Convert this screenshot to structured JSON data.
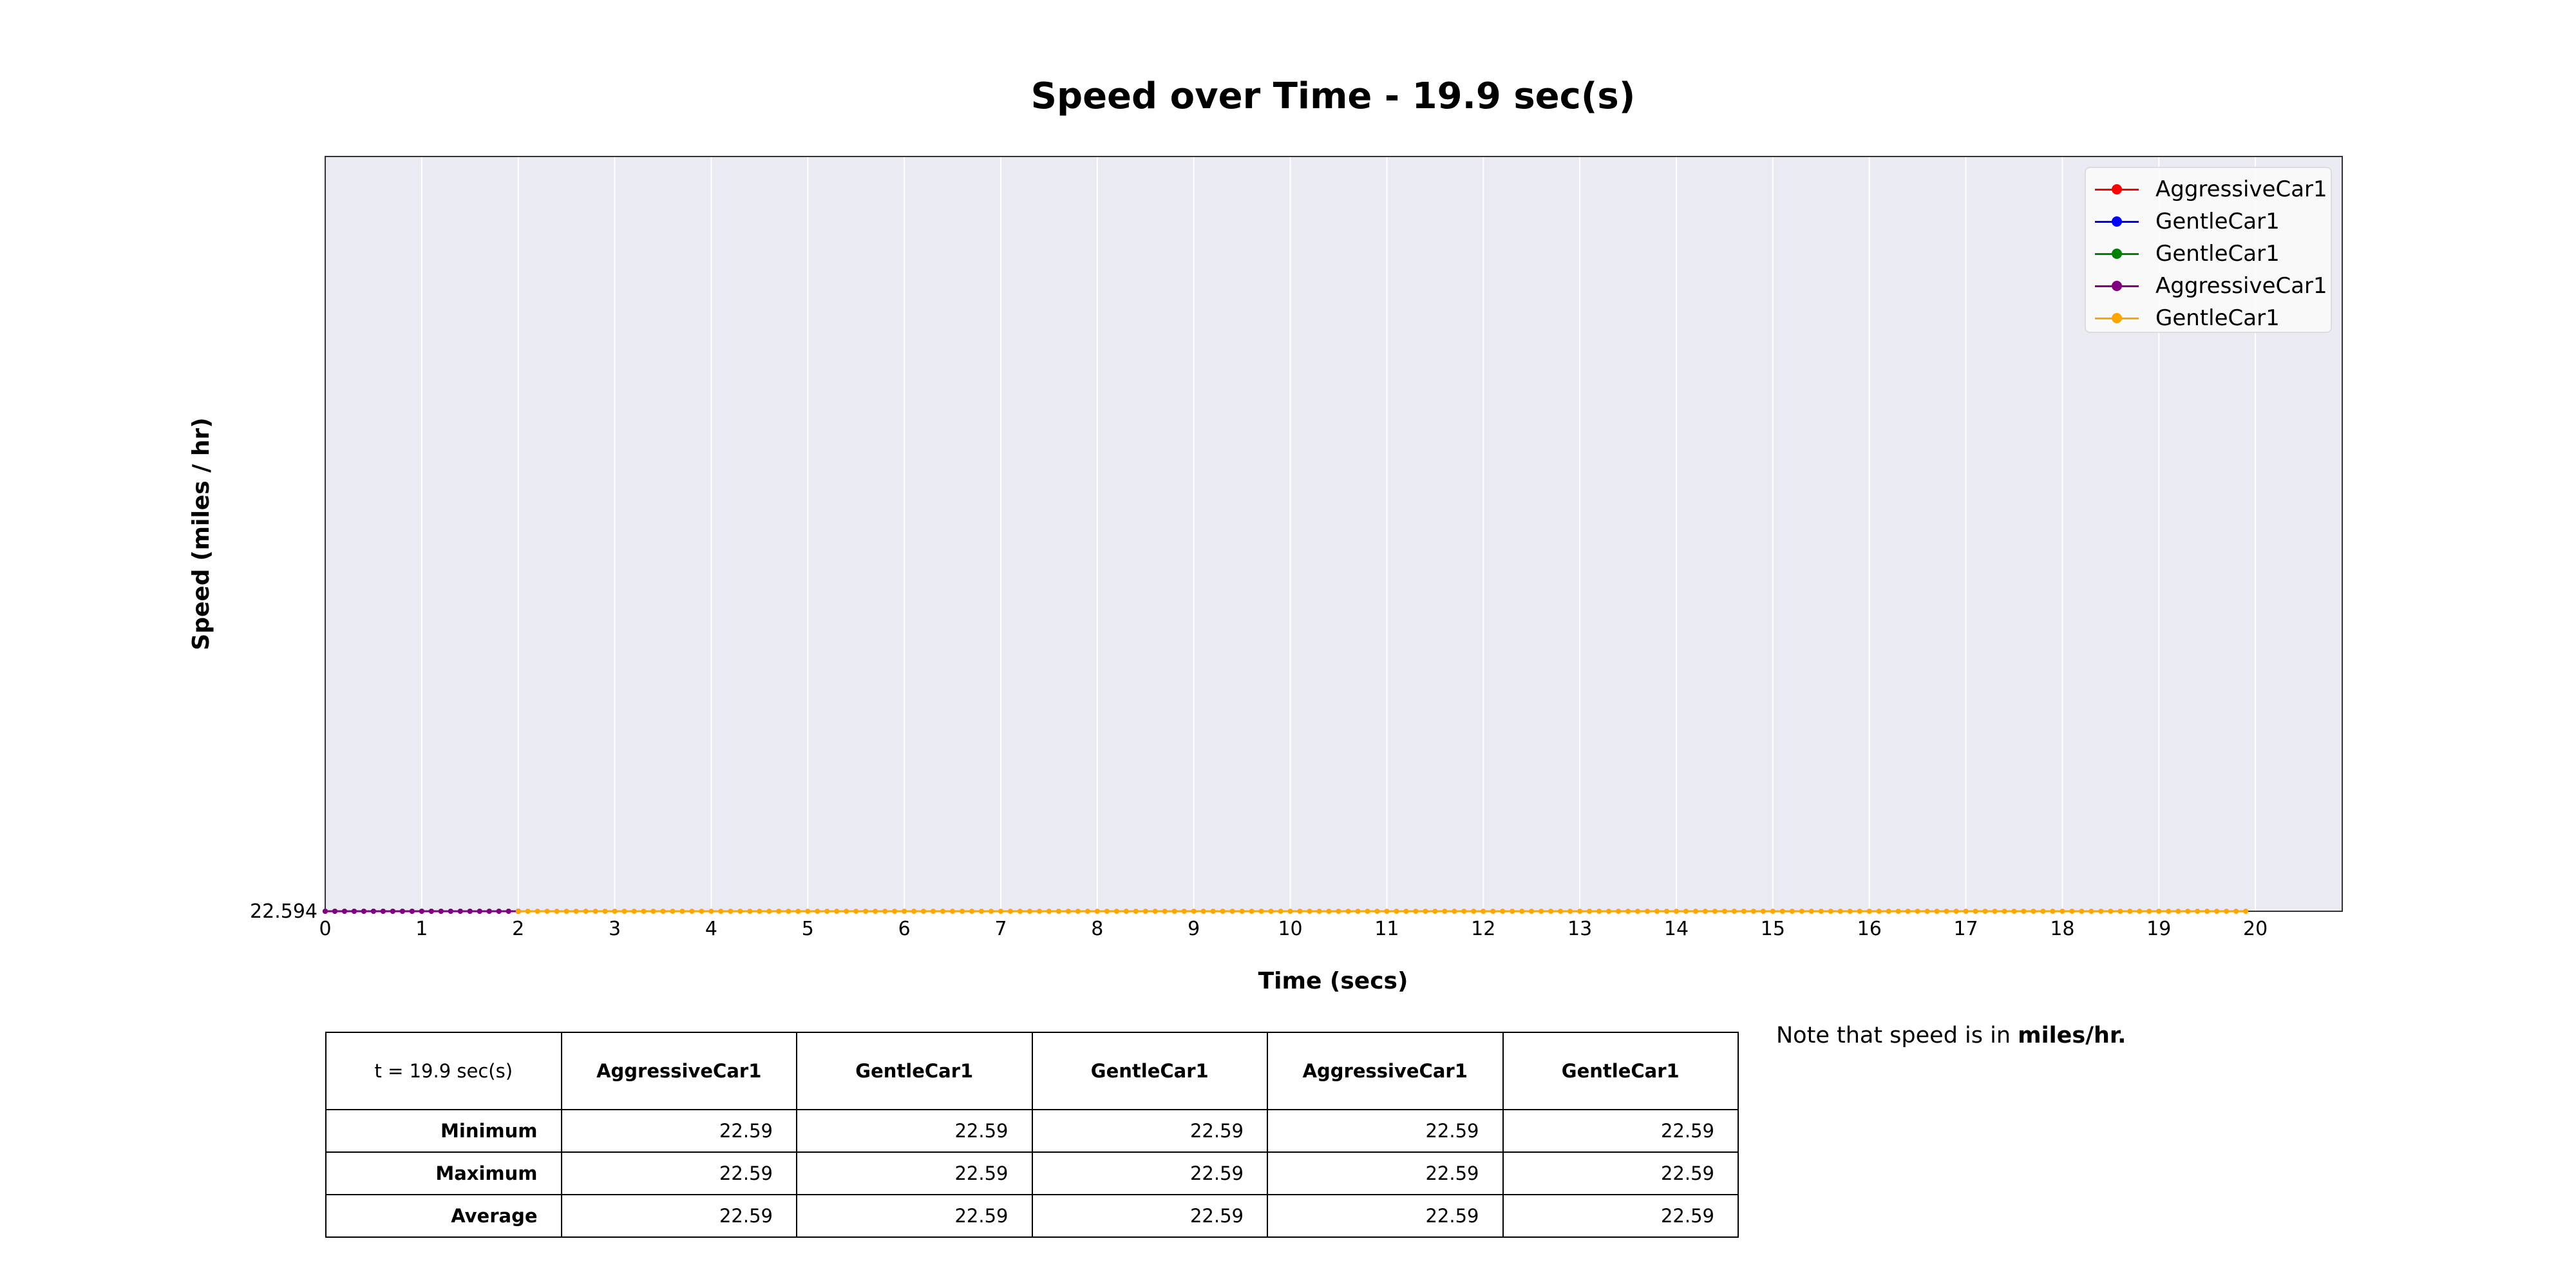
{
  "chart_data": {
    "type": "line",
    "title": "Speed over Time - 19.9 sec(s)",
    "xlabel": "Time (secs)",
    "ylabel": "Speed (miles / hr)",
    "xlim": [
      0,
      20.9
    ],
    "ylim": [
      22.594,
      22.672
    ],
    "x_ticks": [
      0,
      1,
      2,
      3,
      4,
      5,
      6,
      7,
      8,
      9,
      10,
      11,
      12,
      13,
      14,
      15,
      16,
      17,
      18,
      19,
      20
    ],
    "y_ticks": [
      22.594
    ],
    "y_tick_labels": [
      "22.594"
    ],
    "grid": true,
    "legend_position": "top-right",
    "series": [
      {
        "name": "AggressiveCar1",
        "color": "#ff0000",
        "x_start": 0,
        "x_end": 2.0,
        "x_step": 0.1,
        "value": 22.594
      },
      {
        "name": "GentleCar1",
        "color": "#0000ff",
        "x_start": 0,
        "x_end": 2.0,
        "x_step": 0.1,
        "value": 22.594
      },
      {
        "name": "GentleCar1",
        "color": "#008000",
        "x_start": 0,
        "x_end": 2.0,
        "x_step": 0.1,
        "value": 22.594
      },
      {
        "name": "AggressiveCar1",
        "color": "#800080",
        "x_start": 0,
        "x_end": 2.0,
        "x_step": 0.1,
        "value": 22.594
      },
      {
        "name": "GentleCar1",
        "color": "#ffa500",
        "x_start": 2.0,
        "x_end": 19.9,
        "x_step": 0.1,
        "value": 22.594
      }
    ]
  },
  "table": {
    "corner": "t = 19.9 sec(s)",
    "columns": [
      "AggressiveCar1",
      "GentleCar1",
      "GentleCar1",
      "AggressiveCar1",
      "GentleCar1"
    ],
    "rows": [
      {
        "label": "Minimum",
        "values": [
          "22.59",
          "22.59",
          "22.59",
          "22.59",
          "22.59"
        ]
      },
      {
        "label": "Maximum",
        "values": [
          "22.59",
          "22.59",
          "22.59",
          "22.59",
          "22.59"
        ]
      },
      {
        "label": "Average",
        "values": [
          "22.59",
          "22.59",
          "22.59",
          "22.59",
          "22.59"
        ]
      }
    ]
  },
  "note": {
    "prefix": "Note that speed is in ",
    "emphasis": "miles/hr."
  }
}
